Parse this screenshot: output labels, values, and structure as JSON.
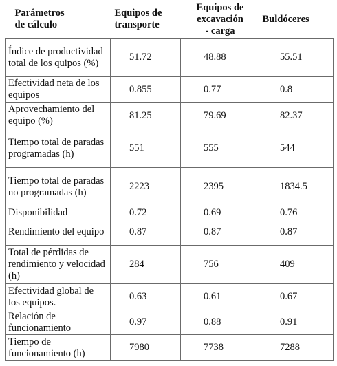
{
  "table": {
    "headers": {
      "param": "Parámetros\nde cálculo",
      "transport": "Equipos de\ntransporte",
      "excavation": "Equipos de\nexcavación\n- carga",
      "bulldozers": "Buldóceres"
    },
    "rows": [
      {
        "label": "Índice de productividad total de los quipos (%)",
        "transport": "51.72",
        "excavation": "48.88",
        "bulldozers": "55.51"
      },
      {
        "label": "Efectividad neta de los equipos",
        "transport": "0.855",
        "excavation": "0.77",
        "bulldozers": "0.8"
      },
      {
        "label": "Aprovechamiento del equipo (%)",
        "transport": "81.25",
        "excavation": "79.69",
        "bulldozers": "82.37"
      },
      {
        "label": "Tiempo total de paradas programadas (h)",
        "transport": "551",
        "excavation": "555",
        "bulldozers": "544"
      },
      {
        "label": "Tiempo total de paradas no programadas (h)",
        "transport": "2223",
        "excavation": "2395",
        "bulldozers": "1834.5"
      },
      {
        "label": "Disponibilidad",
        "transport": "0.72",
        "excavation": "0.69",
        "bulldozers": "0.76"
      },
      {
        "label": "Rendimiento del equipo",
        "transport": "0.87",
        "excavation": "0.87",
        "bulldozers": "0.87"
      },
      {
        "label": "Total de pérdidas de rendimiento y velocidad (h)",
        "transport": "284",
        "excavation": "756",
        "bulldozers": "409"
      },
      {
        "label": "Efectividad global de los equipos.",
        "transport": "0.63",
        "excavation": "0.61",
        "bulldozers": "0.67"
      },
      {
        "label": "Relación de funcionamiento",
        "transport": "0.97",
        "excavation": "0.88",
        "bulldozers": "0.91"
      },
      {
        "label": "Tiempo de funcionamiento (h)",
        "transport": "7980",
        "excavation": "7738",
        "bulldozers": "7288"
      }
    ]
  }
}
